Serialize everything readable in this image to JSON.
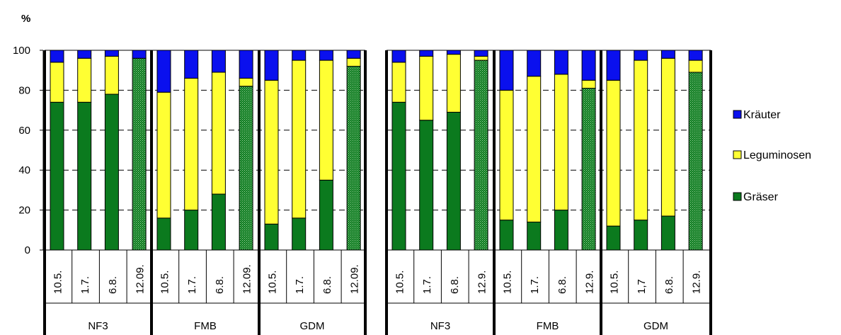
{
  "chart_data": [
    {
      "type": "bar",
      "stacked": true,
      "ylabel": "%",
      "ylim": [
        0,
        100
      ],
      "yticks": [
        0,
        20,
        40,
        60,
        80,
        100
      ],
      "grid": "dashed-horizontal",
      "legend_position": "right",
      "groups": [
        "NF3",
        "FMB",
        "GDM"
      ],
      "categories": [
        "10.5.",
        "1.7.",
        "6.8.",
        "12.09.",
        "10.5.",
        "1.7.",
        "6.8.",
        "12.09.",
        "10.5.",
        "1.7.",
        "6.8.",
        "12.09."
      ],
      "series": [
        {
          "name": "Gräser",
          "color": "#0b7a1e",
          "values": [
            74,
            74,
            78,
            96,
            16,
            20,
            28,
            82,
            13,
            16,
            35,
            92
          ]
        },
        {
          "name": "Leguminosen",
          "color": "#ffff33",
          "values": [
            20,
            22,
            19,
            0,
            63,
            66,
            61,
            4,
            72,
            79,
            60,
            4
          ]
        },
        {
          "name": "Kräuter",
          "color": "#0a10ee",
          "values": [
            6,
            4,
            3,
            4,
            21,
            14,
            11,
            14,
            15,
            5,
            5,
            4
          ]
        }
      ]
    },
    {
      "type": "bar",
      "stacked": true,
      "ylim": [
        0,
        100
      ],
      "grid": "dashed-horizontal",
      "groups": [
        "NF3",
        "FMB",
        "GDM"
      ],
      "categories": [
        "10.5.",
        "1.7.",
        "6.8.",
        "12.9.",
        "10.5.",
        "1.7.",
        "6.8.",
        "12.9.",
        "10.5.",
        "1,7",
        "6.8.",
        "12.9."
      ],
      "series": [
        {
          "name": "Gräser",
          "color": "#0b7a1e",
          "values": [
            74,
            65,
            69,
            95,
            15,
            14,
            20,
            81,
            12,
            15,
            17,
            89
          ]
        },
        {
          "name": "Leguminosen",
          "color": "#ffff33",
          "values": [
            20,
            32,
            29,
            2,
            65,
            73,
            68,
            4,
            73,
            80,
            79,
            6
          ]
        },
        {
          "name": "Kräuter",
          "color": "#0a10ee",
          "values": [
            6,
            3,
            2,
            3,
            20,
            13,
            12,
            15,
            15,
            5,
            4,
            5
          ]
        }
      ]
    }
  ],
  "legend": {
    "items": [
      {
        "label": "Kräuter",
        "color": "#0a10ee"
      },
      {
        "label": "Leguminosen",
        "color": "#ffff33"
      },
      {
        "label": "Gräser",
        "color": "#0b7a1e"
      }
    ]
  }
}
